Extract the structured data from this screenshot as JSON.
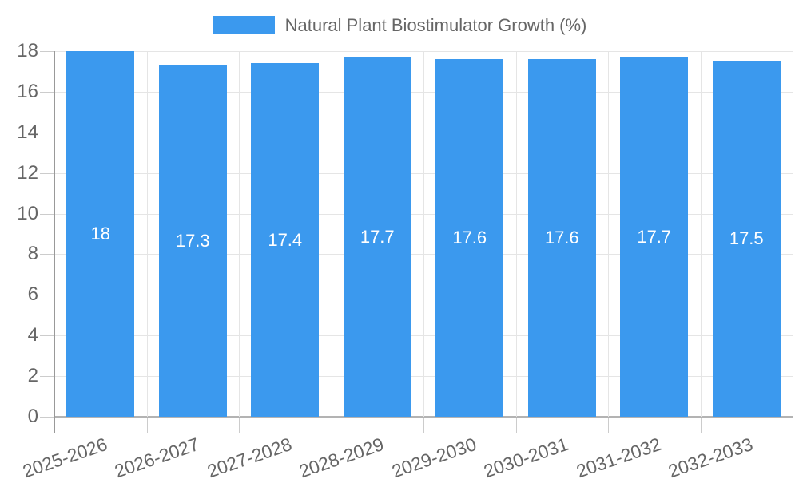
{
  "chart_data": {
    "type": "bar",
    "title": "Natural Plant Biostimulator Growth (%)",
    "legend": {
      "label": "Natural Plant Biostimulator Growth (%)",
      "position": "top"
    },
    "categories": [
      "2025-2026",
      "2026-2027",
      "2027-2028",
      "2028-2029",
      "2029-2030",
      "2030-2031",
      "2031-2032",
      "2032-2033"
    ],
    "values": [
      18,
      17.3,
      17.4,
      17.7,
      17.6,
      17.6,
      17.7,
      17.5
    ],
    "value_labels": [
      "18",
      "17.3",
      "17.4",
      "17.7",
      "17.6",
      "17.6",
      "17.7",
      "17.5"
    ],
    "xlabel": "",
    "ylabel": "",
    "ylim": [
      0,
      18
    ],
    "yticks": [
      0,
      2,
      4,
      6,
      8,
      10,
      12,
      14,
      16,
      18
    ],
    "grid": true,
    "colors": {
      "bar": "#3b99ee",
      "bar_label": "#ffffff",
      "axis_text": "#666666",
      "grid_line": "#e5e5e5",
      "axis_line": "#999999",
      "baseline": "#b3b3b3",
      "tick_line": "#cccccc",
      "background": "#ffffff"
    }
  }
}
